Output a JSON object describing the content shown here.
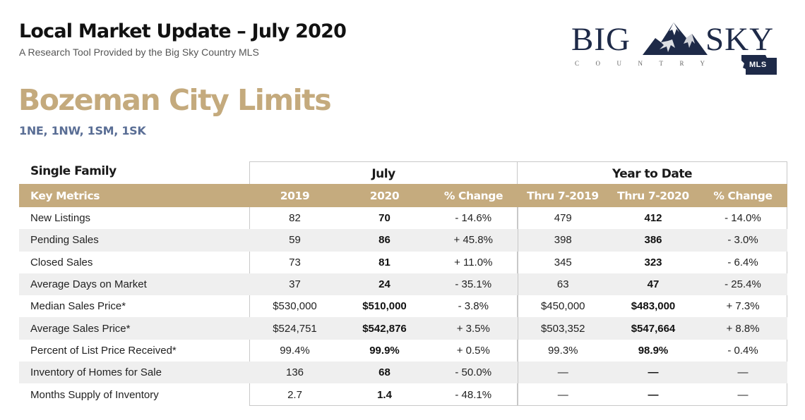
{
  "header": {
    "title": "Local Market Update – July 2020",
    "subtitle": "A Research Tool Provided by the Big Sky Country MLS"
  },
  "area": {
    "name": "Bozeman City Limits",
    "codes": "1NE, 1NW, 1SM, 1SK"
  },
  "logo": {
    "word1": "BIG",
    "word2": "SKY",
    "tagline": "COUNTRY",
    "badge": "MLS"
  },
  "table": {
    "section_label": "Single Family",
    "groups": [
      "July",
      "Year to Date"
    ],
    "columns": [
      "Key Metrics",
      "2019",
      "2020",
      "% Change",
      "Thru 7-2019",
      "Thru 7-2020",
      "% Change"
    ],
    "rows": [
      {
        "metric": "New Listings",
        "values": [
          "82",
          "70",
          "- 14.6%",
          "479",
          "412",
          "- 14.0%"
        ]
      },
      {
        "metric": "Pending Sales",
        "values": [
          "59",
          "86",
          "+ 45.8%",
          "398",
          "386",
          "- 3.0%"
        ]
      },
      {
        "metric": "Closed Sales",
        "values": [
          "73",
          "81",
          "+ 11.0%",
          "345",
          "323",
          "- 6.4%"
        ]
      },
      {
        "metric": "Average Days on Market",
        "values": [
          "37",
          "24",
          "- 35.1%",
          "63",
          "47",
          "- 25.4%"
        ]
      },
      {
        "metric": "Median Sales Price*",
        "values": [
          "$530,000",
          "$510,000",
          "- 3.8%",
          "$450,000",
          "$483,000",
          "+ 7.3%"
        ]
      },
      {
        "metric": "Average Sales Price*",
        "values": [
          "$524,751",
          "$542,876",
          "+ 3.5%",
          "$503,352",
          "$547,664",
          "+ 8.8%"
        ]
      },
      {
        "metric": "Percent of List Price Received*",
        "values": [
          "99.4%",
          "99.9%",
          "+ 0.5%",
          "99.3%",
          "98.9%",
          "- 0.4%"
        ]
      },
      {
        "metric": "Inventory of Homes for Sale",
        "values": [
          "136",
          "68",
          "- 50.0%",
          "—",
          "—",
          "—"
        ]
      },
      {
        "metric": "Months Supply of Inventory",
        "values": [
          "2.7",
          "1.4",
          "- 48.1%",
          "—",
          "—",
          "—"
        ]
      }
    ]
  },
  "colors": {
    "accent_gold": "#c5ab7e",
    "area_codes_blue": "#5a6e95",
    "logo_navy": "#1e2a48",
    "row_stripe": "#efefef"
  }
}
